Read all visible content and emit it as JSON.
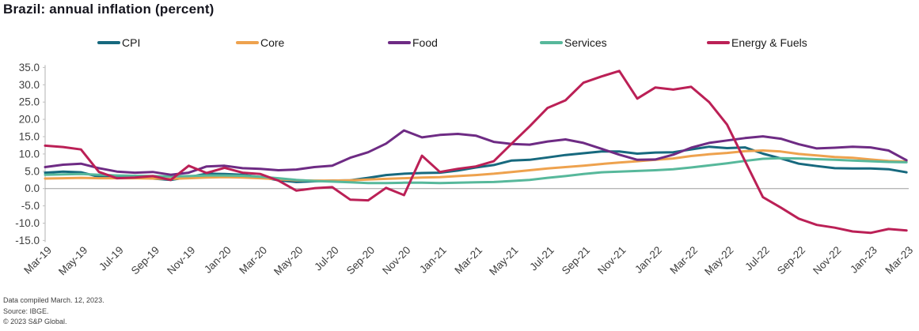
{
  "header": {
    "title": "Brazil: annual inflation (percent)"
  },
  "colors": {
    "zero_line": "#9e9e9e",
    "axis_line": "#bfbfbf",
    "tick_text": "#404040"
  },
  "chart_data": {
    "type": "line",
    "title": "Brazil: annual inflation (percent)",
    "ylabel": "",
    "xlabel": "",
    "ylim": [
      -15,
      35
    ],
    "ytick_step": 5,
    "grid": "zero-line-only",
    "legend_position": "top",
    "x_tick_every": 2,
    "x": [
      "Mar-19",
      "Apr-19",
      "May-19",
      "Jun-19",
      "Jul-19",
      "Aug-19",
      "Sep-19",
      "Oct-19",
      "Nov-19",
      "Dec-19",
      "Jan-20",
      "Feb-20",
      "Mar-20",
      "Apr-20",
      "May-20",
      "Jun-20",
      "Jul-20",
      "Aug-20",
      "Sep-20",
      "Oct-20",
      "Nov-20",
      "Dec-20",
      "Jan-21",
      "Feb-21",
      "Mar-21",
      "Apr-21",
      "May-21",
      "Jun-21",
      "Jul-21",
      "Aug-21",
      "Sep-21",
      "Oct-21",
      "Nov-21",
      "Dec-21",
      "Jan-22",
      "Feb-22",
      "Mar-22",
      "Apr-22",
      "May-22",
      "Jun-22",
      "Jul-22",
      "Aug-22",
      "Sep-22",
      "Oct-22",
      "Nov-22",
      "Dec-22",
      "Jan-23",
      "Feb-23",
      "Mar-23"
    ],
    "series": [
      {
        "name": "CPI",
        "color": "#17697e",
        "values": [
          4.6,
          4.9,
          4.7,
          3.4,
          3.2,
          3.4,
          2.9,
          2.5,
          3.3,
          4.3,
          4.2,
          4.0,
          3.3,
          2.4,
          1.9,
          2.1,
          2.3,
          2.4,
          3.1,
          3.9,
          4.3,
          4.5,
          4.6,
          5.2,
          6.1,
          6.8,
          8.1,
          8.3,
          9.0,
          9.7,
          10.2,
          10.7,
          10.7,
          10.1,
          10.4,
          10.5,
          11.3,
          12.1,
          11.7,
          11.9,
          10.1,
          8.7,
          7.2,
          6.5,
          5.9,
          5.8,
          5.8,
          5.6,
          4.7
        ]
      },
      {
        "name": "Core",
        "color": "#eea24e",
        "values": [
          2.9,
          3.0,
          3.1,
          3.0,
          3.0,
          3.0,
          2.9,
          2.8,
          3.0,
          3.2,
          3.3,
          3.2,
          3.0,
          2.7,
          2.4,
          2.3,
          2.3,
          2.4,
          2.6,
          2.8,
          3.0,
          3.2,
          3.3,
          3.6,
          3.9,
          4.3,
          4.8,
          5.3,
          5.8,
          6.2,
          6.6,
          7.1,
          7.5,
          7.9,
          8.3,
          8.7,
          9.4,
          9.9,
          10.3,
          10.8,
          11.0,
          10.7,
          10.0,
          9.6,
          9.1,
          8.9,
          8.4,
          8.0,
          7.8
        ]
      },
      {
        "name": "Food",
        "color": "#6e2b84",
        "values": [
          6.2,
          6.9,
          7.2,
          5.9,
          4.9,
          4.6,
          4.8,
          4.0,
          4.6,
          6.4,
          6.6,
          5.9,
          5.7,
          5.3,
          5.5,
          6.2,
          6.6,
          8.9,
          10.5,
          13.0,
          16.8,
          14.8,
          15.5,
          15.8,
          15.3,
          13.5,
          12.9,
          12.7,
          13.6,
          14.2,
          13.2,
          11.5,
          9.8,
          8.3,
          8.4,
          9.8,
          11.8,
          13.2,
          13.9,
          14.6,
          15.1,
          14.4,
          12.8,
          11.6,
          11.8,
          12.1,
          11.9,
          11.0,
          8.2
        ]
      },
      {
        "name": "Services",
        "color": "#57b89b",
        "values": [
          4.0,
          4.1,
          4.2,
          4.0,
          3.8,
          3.7,
          3.6,
          3.5,
          3.6,
          3.8,
          3.8,
          3.7,
          3.4,
          3.0,
          2.5,
          2.2,
          2.0,
          1.8,
          1.6,
          1.6,
          1.7,
          1.7,
          1.6,
          1.7,
          1.8,
          1.9,
          2.2,
          2.5,
          3.1,
          3.6,
          4.2,
          4.7,
          4.9,
          5.1,
          5.3,
          5.6,
          6.1,
          6.7,
          7.3,
          8.0,
          8.6,
          8.8,
          8.7,
          8.5,
          8.3,
          8.1,
          7.9,
          7.7,
          7.6
        ]
      },
      {
        "name": "Energy & Fuels",
        "color": "#bb2056",
        "values": [
          12.4,
          12.0,
          11.3,
          4.8,
          3.0,
          3.2,
          3.6,
          2.5,
          6.6,
          4.5,
          6.0,
          4.6,
          4.2,
          2.3,
          -0.6,
          0.1,
          0.4,
          -3.2,
          -3.4,
          0.2,
          -1.9,
          9.5,
          4.8,
          5.7,
          6.4,
          7.9,
          13.0,
          18.0,
          23.3,
          25.5,
          30.6,
          32.4,
          34.0,
          26.0,
          29.2,
          28.6,
          29.4,
          25.0,
          18.5,
          8.0,
          -2.5,
          -5.5,
          -8.7,
          -10.5,
          -11.3,
          -12.4,
          -12.8,
          -11.7,
          -12.1
        ]
      }
    ]
  },
  "footer": {
    "lines": [
      "Data compiled March. 12, 2023.",
      "Source: IBGE.",
      "© 2023 S&P Global."
    ]
  }
}
